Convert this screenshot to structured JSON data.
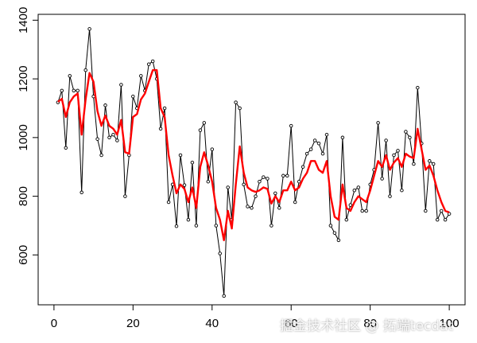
{
  "chart_data": {
    "type": "line",
    "title": "",
    "xlabel": "",
    "ylabel": "",
    "xlim": [
      -4,
      104
    ],
    "ylim": [
      430,
      1420
    ],
    "x_ticks": [
      0,
      20,
      40,
      60,
      80,
      100
    ],
    "y_ticks": [
      600,
      800,
      1000,
      1200,
      1400
    ],
    "x_tick_labels": [
      "0",
      "20",
      "40",
      "60",
      "80",
      "100"
    ],
    "y_tick_labels": [
      "600",
      "800",
      "1000",
      "1200",
      "1400"
    ],
    "grid": false,
    "legend": "none",
    "series": [
      {
        "style": "points-and-line",
        "color": "#000000",
        "x": [
          1,
          2,
          3,
          4,
          5,
          6,
          7,
          8,
          9,
          10,
          11,
          12,
          13,
          14,
          15,
          16,
          17,
          18,
          19,
          20,
          21,
          22,
          23,
          24,
          25,
          26,
          27,
          28,
          29,
          30,
          31,
          32,
          33,
          34,
          35,
          36,
          37,
          38,
          39,
          40,
          41,
          42,
          43,
          44,
          45,
          46,
          47,
          48,
          49,
          50,
          51,
          52,
          53,
          54,
          55,
          56,
          57,
          58,
          59,
          60,
          61,
          62,
          63,
          64,
          65,
          66,
          67,
          68,
          69,
          70,
          71,
          72,
          73,
          74,
          75,
          76,
          77,
          78,
          79,
          80,
          81,
          82,
          83,
          84,
          85,
          86,
          87,
          88,
          89,
          90,
          91,
          92,
          93,
          94,
          95,
          96,
          97,
          98,
          99,
          100
        ],
        "y": [
          1120,
          1160,
          965,
          1210,
          1160,
          1160,
          813,
          1230,
          1370,
          1140,
          995,
          940,
          1110,
          1000,
          1010,
          990,
          1180,
          800,
          940,
          1140,
          1100,
          1210,
          1160,
          1250,
          1260,
          1200,
          1030,
          1100,
          780,
          840,
          698,
          940,
          838,
          720,
          915,
          700,
          1025,
          1050,
          850,
          960,
          700,
          605,
          460,
          830,
          720,
          1120,
          1100,
          840,
          765,
          760,
          800,
          850,
          865,
          860,
          700,
          810,
          760,
          870,
          870,
          1040,
          780,
          850,
          900,
          945,
          960,
          990,
          980,
          945,
          1010,
          700,
          675,
          650,
          1000,
          720,
          770,
          820,
          830,
          750,
          750,
          840,
          890,
          1050,
          860,
          990,
          800,
          940,
          955,
          820,
          1020,
          1000,
          910,
          1170,
          980,
          750,
          920,
          910,
          720,
          750,
          720,
          740
        ]
      },
      {
        "style": "line",
        "color": "#ff0000",
        "x": [
          1,
          2,
          3,
          4,
          5,
          6,
          7,
          8,
          9,
          10,
          11,
          12,
          13,
          14,
          15,
          16,
          17,
          18,
          19,
          20,
          21,
          22,
          23,
          24,
          25,
          26,
          27,
          28,
          29,
          30,
          31,
          32,
          33,
          34,
          35,
          36,
          37,
          38,
          39,
          40,
          41,
          42,
          43,
          44,
          45,
          46,
          47,
          48,
          49,
          50,
          51,
          52,
          53,
          54,
          55,
          56,
          57,
          58,
          59,
          60,
          61,
          62,
          63,
          64,
          65,
          66,
          67,
          68,
          69,
          70,
          71,
          72,
          73,
          74,
          75,
          76,
          77,
          78,
          79,
          80,
          81,
          82,
          83,
          84,
          85,
          86,
          87,
          88,
          89,
          90,
          91,
          92,
          93,
          94,
          95,
          96,
          97,
          98,
          99,
          100
        ],
        "y": [
          1122,
          1132,
          1070,
          1120,
          1140,
          1150,
          1010,
          1130,
          1220,
          1190,
          1090,
          1040,
          1075,
          1040,
          1030,
          1010,
          1060,
          950,
          945,
          1070,
          1080,
          1130,
          1150,
          1190,
          1230,
          1230,
          1100,
          1070,
          940,
          870,
          810,
          840,
          825,
          780,
          830,
          760,
          900,
          950,
          905,
          850,
          760,
          720,
          650,
          750,
          690,
          840,
          970,
          880,
          830,
          820,
          815,
          820,
          830,
          825,
          775,
          800,
          780,
          820,
          820,
          850,
          820,
          830,
          860,
          880,
          920,
          920,
          890,
          880,
          920,
          800,
          730,
          720,
          840,
          760,
          750,
          780,
          800,
          790,
          780,
          820,
          870,
          920,
          900,
          940,
          890,
          915,
          930,
          900,
          945,
          935,
          930,
          1030,
          960,
          890,
          905,
          870,
          820,
          780,
          750,
          745
        ]
      }
    ]
  },
  "watermark": {
    "text": "掘金技术社区 @ 拓端tecdat"
  }
}
